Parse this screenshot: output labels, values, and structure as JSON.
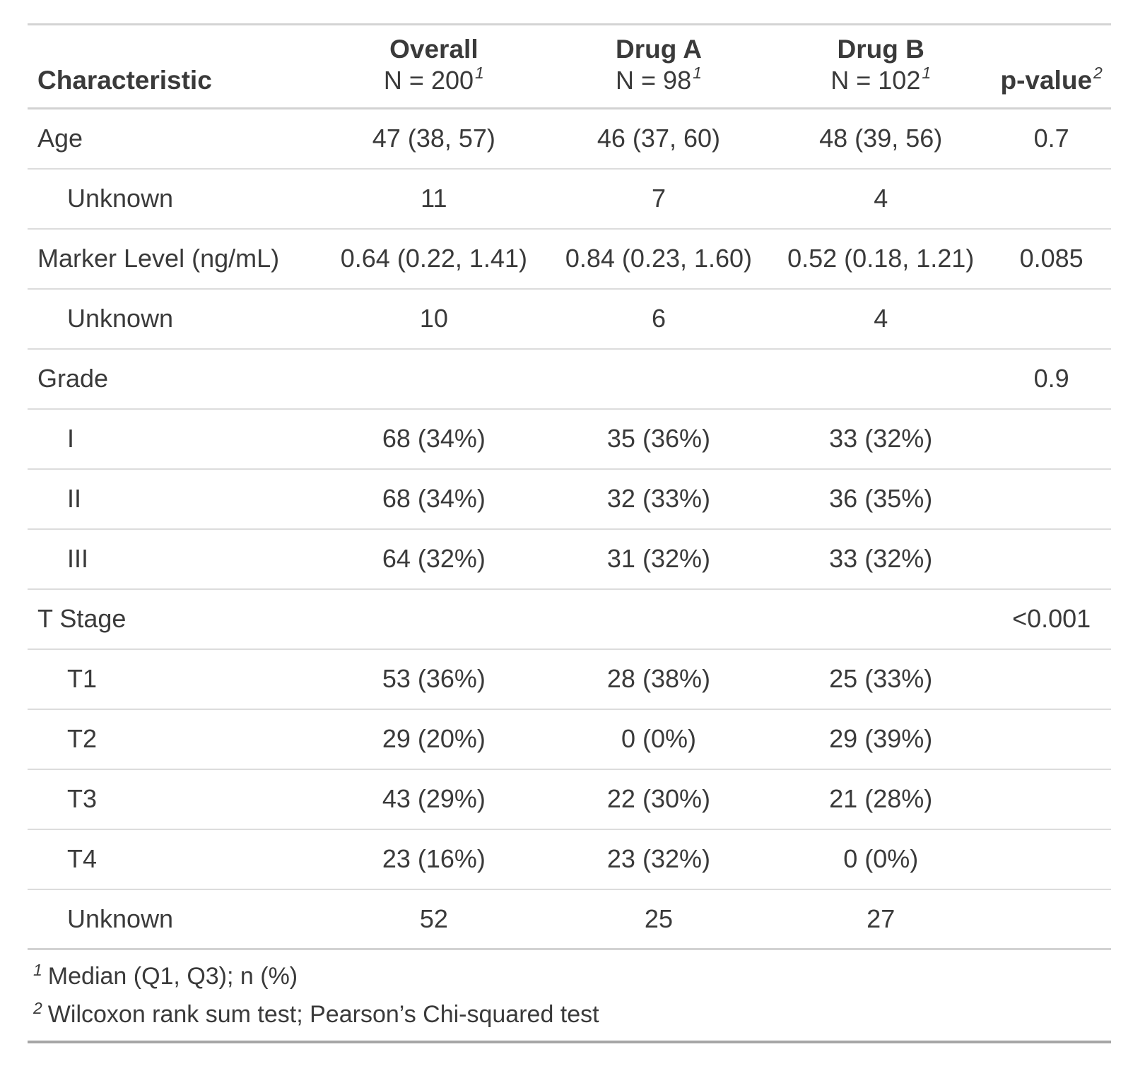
{
  "table": {
    "header": {
      "characteristic": {
        "title": "Characteristic"
      },
      "overall": {
        "title": "Overall",
        "subtitle": "N = 200",
        "footnote_mark": "1"
      },
      "drug_a": {
        "title": "Drug A",
        "subtitle": "N = 98",
        "footnote_mark": "1"
      },
      "drug_b": {
        "title": "Drug B",
        "subtitle": "N = 102",
        "footnote_mark": "1"
      },
      "p_value": {
        "title": "p-value",
        "footnote_mark": "2"
      }
    },
    "rows": [
      {
        "label": "Age",
        "indent": false,
        "overall": "47 (38, 57)",
        "drug_a": "46 (37, 60)",
        "drug_b": "48 (39, 56)",
        "p_value": "0.7"
      },
      {
        "label": "Unknown",
        "indent": true,
        "overall": "11",
        "drug_a": "7",
        "drug_b": "4",
        "p_value": ""
      },
      {
        "label": "Marker Level (ng/mL)",
        "indent": false,
        "overall": "0.64 (0.22, 1.41)",
        "drug_a": "0.84 (0.23, 1.60)",
        "drug_b": "0.52 (0.18, 1.21)",
        "p_value": "0.085"
      },
      {
        "label": "Unknown",
        "indent": true,
        "overall": "10",
        "drug_a": "6",
        "drug_b": "4",
        "p_value": ""
      },
      {
        "label": "Grade",
        "indent": false,
        "overall": "",
        "drug_a": "",
        "drug_b": "",
        "p_value": "0.9"
      },
      {
        "label": "I",
        "indent": true,
        "overall": "68 (34%)",
        "drug_a": "35 (36%)",
        "drug_b": "33 (32%)",
        "p_value": ""
      },
      {
        "label": "II",
        "indent": true,
        "overall": "68 (34%)",
        "drug_a": "32 (33%)",
        "drug_b": "36 (35%)",
        "p_value": ""
      },
      {
        "label": "III",
        "indent": true,
        "overall": "64 (32%)",
        "drug_a": "31 (32%)",
        "drug_b": "33 (32%)",
        "p_value": ""
      },
      {
        "label": "T Stage",
        "indent": false,
        "overall": "",
        "drug_a": "",
        "drug_b": "",
        "p_value": "<0.001"
      },
      {
        "label": "T1",
        "indent": true,
        "overall": "53 (36%)",
        "drug_a": "28 (38%)",
        "drug_b": "25 (33%)",
        "p_value": ""
      },
      {
        "label": "T2",
        "indent": true,
        "overall": "29 (20%)",
        "drug_a": "0 (0%)",
        "drug_b": "29 (39%)",
        "p_value": ""
      },
      {
        "label": "T3",
        "indent": true,
        "overall": "43 (29%)",
        "drug_a": "22 (30%)",
        "drug_b": "21 (28%)",
        "p_value": ""
      },
      {
        "label": "T4",
        "indent": true,
        "overall": "23 (16%)",
        "drug_a": "23 (32%)",
        "drug_b": "0 (0%)",
        "p_value": ""
      },
      {
        "label": "Unknown",
        "indent": true,
        "overall": "52",
        "drug_a": "25",
        "drug_b": "27",
        "p_value": ""
      }
    ],
    "footnotes": [
      {
        "mark": "1",
        "text": "Median (Q1, Q3); n (%)"
      },
      {
        "mark": "2",
        "text": "Wilcoxon rank sum test; Pearson’s Chi-squared test"
      }
    ]
  },
  "colors": {
    "text": "#3a3a3a",
    "border_light": "#d2d2d2",
    "border_row": "#dcdcdc",
    "border_bottom": "#a6a6a6",
    "background": "#ffffff"
  },
  "chart_data": {
    "type": "table",
    "title": "",
    "columns": [
      "Characteristic",
      "Overall N = 200",
      "Drug A N = 98",
      "Drug B N = 102",
      "p-value"
    ],
    "rows": [
      [
        "Age",
        "47 (38, 57)",
        "46 (37, 60)",
        "48 (39, 56)",
        "0.7"
      ],
      [
        "Unknown",
        "11",
        "7",
        "4",
        ""
      ],
      [
        "Marker Level (ng/mL)",
        "0.64 (0.22, 1.41)",
        "0.84 (0.23, 1.60)",
        "0.52 (0.18, 1.21)",
        "0.085"
      ],
      [
        "Unknown",
        "10",
        "6",
        "4",
        ""
      ],
      [
        "Grade",
        "",
        "",
        "",
        "0.9"
      ],
      [
        "I",
        "68 (34%)",
        "35 (36%)",
        "33 (32%)",
        ""
      ],
      [
        "II",
        "68 (34%)",
        "32 (33%)",
        "36 (35%)",
        ""
      ],
      [
        "III",
        "64 (32%)",
        "31 (32%)",
        "33 (32%)",
        ""
      ],
      [
        "T Stage",
        "",
        "",
        "",
        "<0.001"
      ],
      [
        "T1",
        "53 (36%)",
        "28 (38%)",
        "25 (33%)",
        ""
      ],
      [
        "T2",
        "29 (20%)",
        "0 (0%)",
        "29 (39%)",
        ""
      ],
      [
        "T3",
        "43 (29%)",
        "22 (30%)",
        "21 (28%)",
        ""
      ],
      [
        "T4",
        "23 (16%)",
        "23 (32%)",
        "0 (0%)",
        ""
      ],
      [
        "Unknown",
        "52",
        "25",
        "27",
        ""
      ]
    ],
    "footnotes": [
      "1 Median (Q1, Q3); n (%)",
      "2 Wilcoxon rank sum test; Pearson's Chi-squared test"
    ]
  }
}
